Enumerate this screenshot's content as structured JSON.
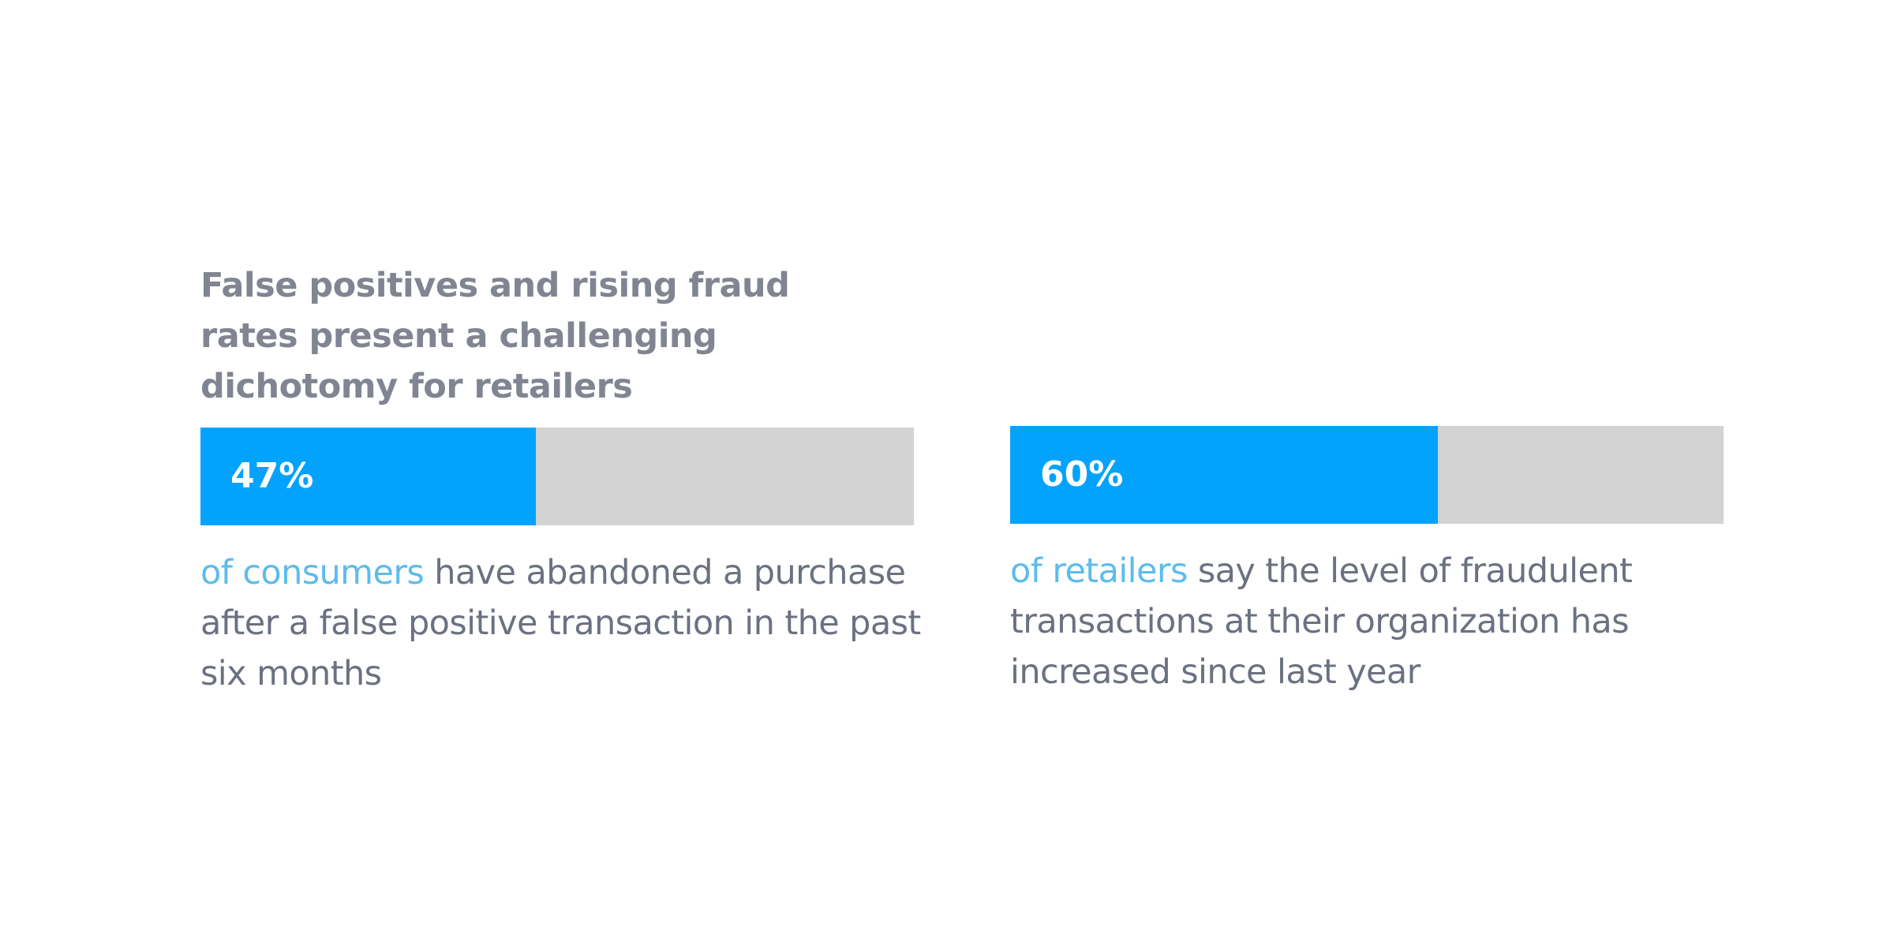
{
  "headline": "False positives and rising fraud rates present a challenging dichotomy for retailers",
  "colors": {
    "fill": "#03a3fd",
    "track": "#d3d3d3",
    "highlight": "#5cbcec",
    "body_text": "#6b7180",
    "headline_text": "#808591"
  },
  "chart_data": [
    {
      "type": "bar",
      "orientation": "horizontal",
      "values": [
        47
      ],
      "max": 100,
      "value_label": "47%",
      "highlight": "of consumers",
      "caption": " have abandoned a purchase after a false positive transaction in the past six months"
    },
    {
      "type": "bar",
      "orientation": "horizontal",
      "values": [
        60
      ],
      "max": 100,
      "value_label": "60%",
      "highlight": "of retailers",
      "caption": " say the level of fraudulent transactions at their organization has increased since last year"
    }
  ]
}
